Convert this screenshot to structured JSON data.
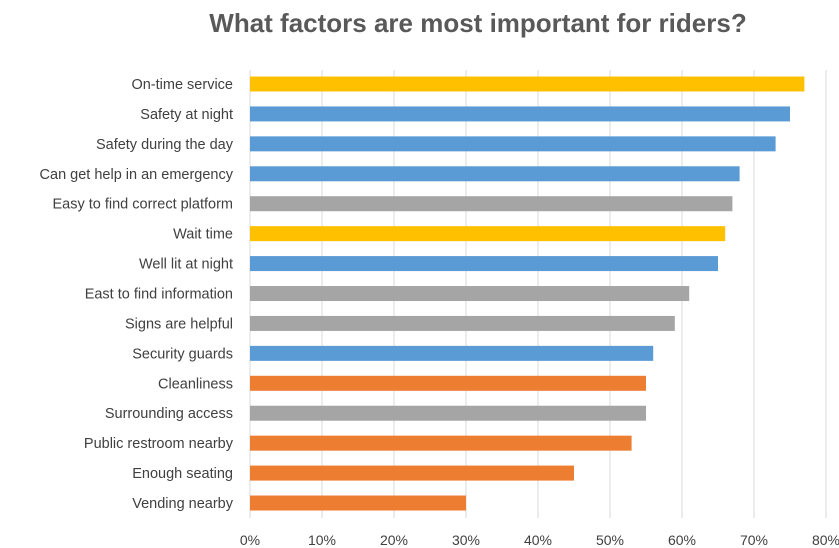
{
  "chart_data": {
    "type": "bar",
    "orientation": "horizontal",
    "title": "What factors are most important for riders?",
    "xlabel": "",
    "ylabel": "",
    "xlim": [
      0,
      0.8
    ],
    "x_ticks": [
      "0%",
      "10%",
      "20%",
      "30%",
      "40%",
      "50%",
      "60%",
      "70%",
      "80%"
    ],
    "grid": "vertical",
    "legend": "none",
    "categories": [
      "On-time service",
      "Safety at night",
      "Safety during the day",
      "Can get help in an emergency",
      "Easy to find correct platform",
      "Wait time",
      "Well lit at night",
      "East to find information",
      "Signs are helpful",
      "Security guards",
      "Cleanliness",
      "Surrounding access",
      "Public restroom nearby",
      "Enough seating",
      "Vending nearby"
    ],
    "values": [
      0.77,
      0.75,
      0.73,
      0.68,
      0.67,
      0.66,
      0.65,
      0.61,
      0.59,
      0.56,
      0.55,
      0.55,
      0.53,
      0.45,
      0.3
    ],
    "bar_colors": [
      "#FFC000",
      "#5B9BD5",
      "#5B9BD5",
      "#5B9BD5",
      "#A5A5A5",
      "#FFC000",
      "#5B9BD5",
      "#A5A5A5",
      "#A5A5A5",
      "#5B9BD5",
      "#ED7D31",
      "#A5A5A5",
      "#ED7D31",
      "#ED7D31",
      "#ED7D31"
    ],
    "gridline_color": "#D9D9D9"
  }
}
